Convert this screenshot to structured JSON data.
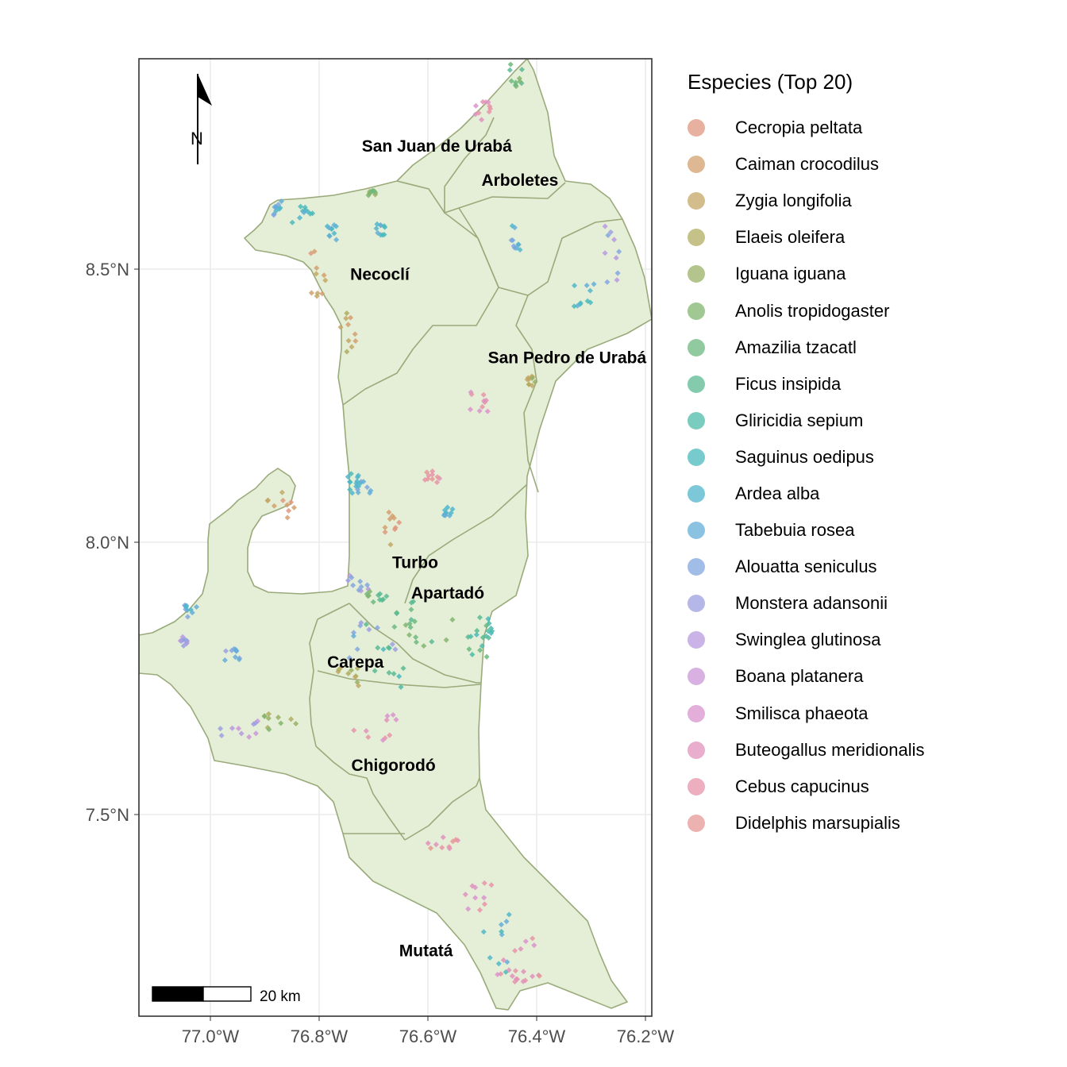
{
  "legend": {
    "title": "Especies (Top 20)",
    "items": [
      {
        "label": "Cecropia peltata",
        "color": "#E0977F"
      },
      {
        "label": "Caiman crocodilus",
        "color": "#D3A06E"
      },
      {
        "label": "Zygia longifolia",
        "color": "#C4A765"
      },
      {
        "label": "Elaeis oleifera",
        "color": "#B0AC62"
      },
      {
        "label": "Iguana iguana",
        "color": "#99B065"
      },
      {
        "label": "Anolis tropidogaster",
        "color": "#82B56F"
      },
      {
        "label": "Amazilia tzacatl",
        "color": "#6CB87F"
      },
      {
        "label": "Ficus insipida",
        "color": "#5BBA93"
      },
      {
        "label": "Gliricidia sepium",
        "color": "#4EBBA8"
      },
      {
        "label": "Saguinus oedipus",
        "color": "#4ABABB"
      },
      {
        "label": "Ardea alba",
        "color": "#50B6CB"
      },
      {
        "label": "Tabebuia rosea",
        "color": "#64AED8"
      },
      {
        "label": "Alouatta seniculus",
        "color": "#83A6E0"
      },
      {
        "label": "Monstera adansonii",
        "color": "#9E9FE2"
      },
      {
        "label": "Swinglea glutinosa",
        "color": "#B799DF"
      },
      {
        "label": "Boana platanera",
        "color": "#CB96D8"
      },
      {
        "label": "Smilisca phaeota",
        "color": "#DA93CC"
      },
      {
        "label": "Buteogallus meridionalis",
        "color": "#E292BC"
      },
      {
        "label": "Cebus capucinus",
        "color": "#E794A9"
      },
      {
        "label": "Didelphis marsupialis",
        "color": "#E69895"
      }
    ]
  },
  "axes": {
    "x_ticks": [
      "77.0°W",
      "76.8°W",
      "76.6°W",
      "76.4°W",
      "76.2°W"
    ],
    "y_ticks": [
      "8.5°N",
      "8.0°N",
      "7.5°N"
    ]
  },
  "north_arrow": {
    "label": "N"
  },
  "scale_bar": {
    "label": "20 km"
  },
  "municipalities": [
    {
      "name": "San Juan de Urabá",
      "lon": -76.585,
      "lat": 8.717
    },
    {
      "name": "Arboletes",
      "lon": -76.432,
      "lat": 8.656
    },
    {
      "name": "Necoclí",
      "lon": -76.69,
      "lat": 8.487
    },
    {
      "name": "San Pedro de Urabá",
      "lon": -76.345,
      "lat": 8.337
    },
    {
      "name": "Turbo",
      "lon": -76.625,
      "lat": 7.969
    },
    {
      "name": "Apartadó",
      "lon": -76.565,
      "lat": 7.914
    },
    {
      "name": "Carepa",
      "lon": -76.735,
      "lat": 7.79
    },
    {
      "name": "Chigorodó",
      "lon": -76.665,
      "lat": 7.605
    },
    {
      "name": "Mutatá",
      "lon": -76.605,
      "lat": 7.272
    }
  ],
  "map_data": {
    "x_range": [
      -77.134,
      -76.189
    ],
    "y_range": [
      7.164,
      8.884
    ],
    "region_fill": "#E5EFD8",
    "border_color": "#9AAA7A"
  }
}
